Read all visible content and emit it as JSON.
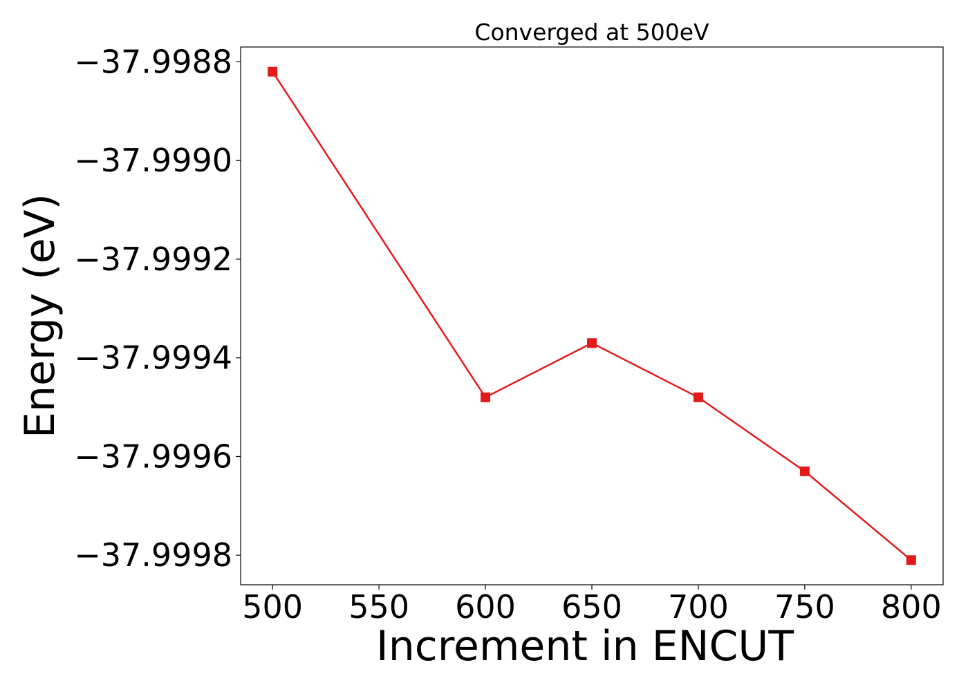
{
  "chart_data": {
    "type": "line",
    "title": "Converged at 500eV",
    "xlabel": "Increment in ENCUT",
    "ylabel": "Energy (eV)",
    "x": [
      500,
      600,
      650,
      700,
      750,
      800
    ],
    "series": [
      {
        "values": [
          -37.99882,
          -37.99948,
          -37.99937,
          -37.99948,
          -37.99963,
          -37.99981
        ],
        "color": "#e31a1c",
        "marker": "square"
      }
    ],
    "xticks": [
      500,
      550,
      600,
      650,
      700,
      750,
      800
    ],
    "xtick_labels": [
      "500",
      "550",
      "600",
      "650",
      "700",
      "750",
      "800"
    ],
    "yticks": [
      -37.9988,
      -37.999,
      -37.9992,
      -37.9994,
      -37.9996,
      -37.9998
    ],
    "ytick_labels": [
      "−37.9988",
      "−37.9990",
      "−37.9992",
      "−37.9994",
      "−37.9996",
      "−37.9998"
    ],
    "xlim": [
      485,
      815
    ],
    "ylim": [
      -37.99986,
      -37.99877
    ],
    "grid": false,
    "legend": "none"
  }
}
